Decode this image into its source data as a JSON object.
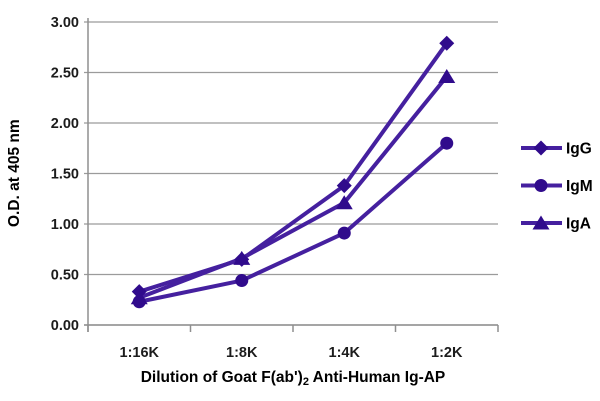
{
  "chart_data": {
    "type": "line",
    "title": "",
    "categories": [
      "1:16K",
      "1:8K",
      "1:4K",
      "1:2K"
    ],
    "series": [
      {
        "name": "IgG",
        "marker": "diamond",
        "values": [
          0.33,
          0.65,
          1.38,
          2.79
        ]
      },
      {
        "name": "IgM",
        "marker": "circle",
        "values": [
          0.23,
          0.44,
          0.91,
          1.8
        ]
      },
      {
        "name": "IgA",
        "marker": "triangle",
        "values": [
          0.27,
          0.66,
          1.21,
          2.46
        ]
      }
    ],
    "xlabel": {
      "prefix": "Dilution of Goat F(ab')",
      "sub": "2",
      "suffix": " Anti-Human Ig-AP",
      "full": "Dilution of Goat F(ab')2 Anti-Human Ig-AP"
    },
    "ylabel": "O.D. at 405 nm",
    "ylim": [
      0,
      3
    ],
    "ytick_labels": [
      "0.00",
      "0.50",
      "1.00",
      "1.50",
      "2.00",
      "2.50",
      "3.00"
    ],
    "grid": true,
    "legend_position": "right",
    "colors": {
      "line": "#45209f",
      "marker": "#300b8c",
      "grid": "#9b9b9b",
      "axis": "#8f8f8f",
      "text": "#000000"
    }
  }
}
